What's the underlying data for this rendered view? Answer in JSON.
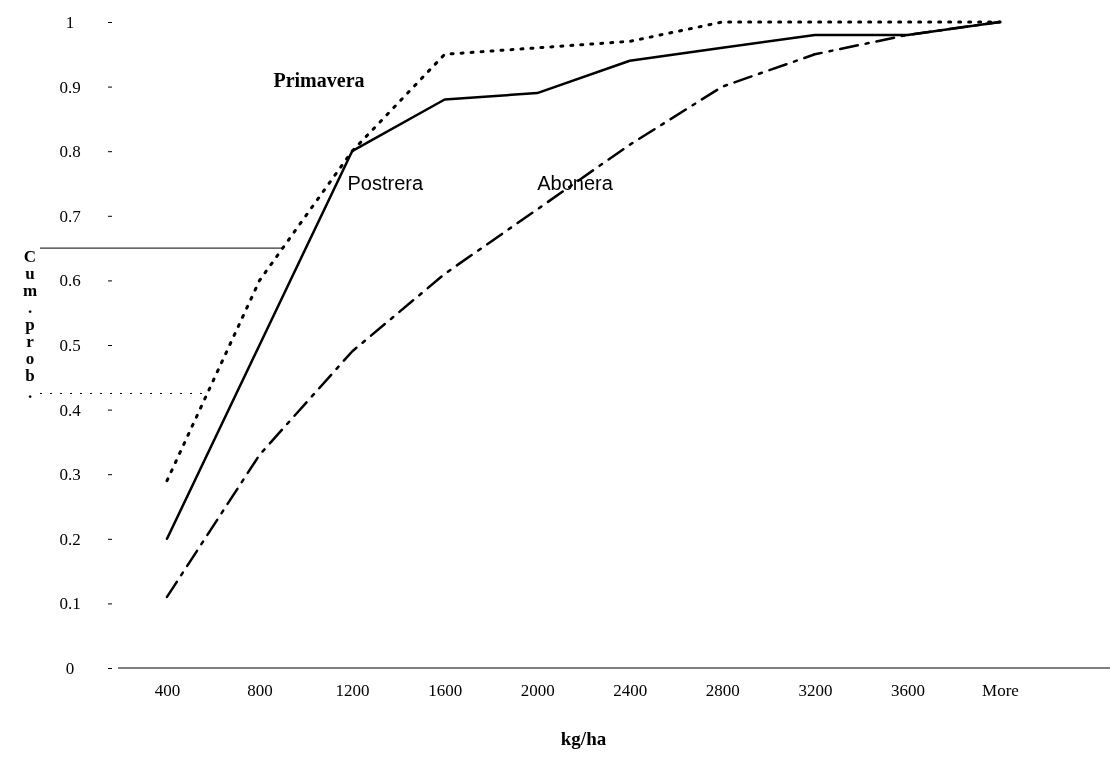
{
  "chart_data": {
    "type": "line",
    "xlabel": "kg/ha",
    "ylabel": "Cum.prob.",
    "categories": [
      "400",
      "800",
      "1200",
      "1600",
      "2000",
      "2400",
      "2800",
      "3200",
      "3600",
      "More"
    ],
    "series": [
      {
        "name": "Primavera",
        "color": "#000000",
        "line_style": "dotted",
        "values": [
          0.29,
          0.6,
          0.8,
          0.95,
          0.96,
          0.97,
          1.0,
          1.0,
          1.0,
          1.0
        ]
      },
      {
        "name": "Postrera",
        "color": "#000000",
        "line_style": "solid",
        "values": [
          0.2,
          0.5,
          0.8,
          0.88,
          0.89,
          0.94,
          0.96,
          0.98,
          0.98,
          1.0
        ]
      },
      {
        "name": "Abonera",
        "color": "#000000",
        "line_style": "dashed",
        "values": [
          0.11,
          0.33,
          0.49,
          0.61,
          0.71,
          0.81,
          0.9,
          0.95,
          0.98,
          1.0
        ]
      }
    ],
    "ylim": [
      0,
      1
    ],
    "yticks": [
      0,
      0.1,
      0.2,
      0.3,
      0.4,
      0.5,
      0.6,
      0.7,
      0.8,
      0.9,
      1
    ],
    "ref_lines": [
      {
        "axis": "y",
        "value": 0.65,
        "line_style": "solid",
        "color": "#000000"
      },
      {
        "axis": "y",
        "value": 0.425,
        "line_style": "dotted",
        "color": "#000000"
      }
    ],
    "grid": false,
    "marker": "none"
  }
}
